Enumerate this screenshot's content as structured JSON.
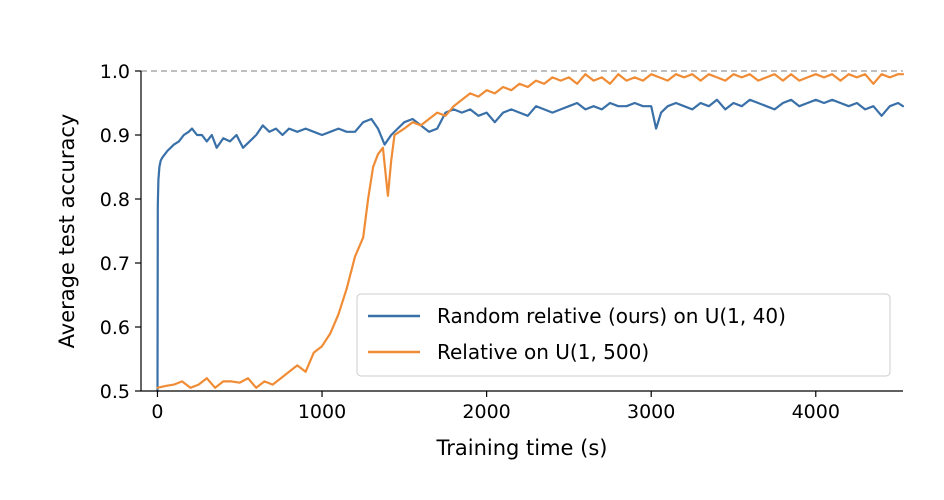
{
  "chart_data": {
    "type": "line",
    "xlabel": "Training time (s)",
    "ylabel": "Average test accuracy",
    "xlim": [
      -100,
      4530
    ],
    "ylim": [
      0.5,
      1.0
    ],
    "x_ticks": [
      0,
      1000,
      2000,
      3000,
      4000
    ],
    "x_tick_labels": [
      "0",
      "1000",
      "2000",
      "3000",
      "4000"
    ],
    "y_ticks": [
      0.5,
      0.6,
      0.7,
      0.8,
      0.9,
      1.0
    ],
    "y_tick_labels": [
      "0.5",
      "0.6",
      "0.7",
      "0.8",
      "0.9",
      "1.0"
    ],
    "reference_line": {
      "y": 1.0,
      "style": "dashed",
      "color": "#999999"
    },
    "legend_position": "lower-right",
    "series": [
      {
        "name": "Random relative (ours) on U(1, 40)",
        "color": "#3a70a8",
        "x": [
          0,
          2,
          6,
          12,
          20,
          30,
          45,
          60,
          80,
          100,
          130,
          160,
          190,
          210,
          240,
          270,
          300,
          330,
          360,
          400,
          440,
          480,
          520,
          560,
          600,
          640,
          680,
          720,
          760,
          800,
          850,
          900,
          950,
          1000,
          1050,
          1100,
          1150,
          1200,
          1250,
          1300,
          1340,
          1380,
          1420,
          1460,
          1500,
          1550,
          1600,
          1650,
          1700,
          1750,
          1800,
          1850,
          1900,
          1950,
          2000,
          2050,
          2100,
          2150,
          2200,
          2250,
          2300,
          2350,
          2400,
          2450,
          2500,
          2550,
          2600,
          2650,
          2700,
          2750,
          2800,
          2850,
          2900,
          2950,
          3000,
          3030,
          3060,
          3100,
          3150,
          3200,
          3250,
          3300,
          3350,
          3400,
          3450,
          3500,
          3550,
          3600,
          3650,
          3700,
          3750,
          3800,
          3850,
          3900,
          3950,
          4000,
          4050,
          4100,
          4150,
          4200,
          4250,
          4300,
          4350,
          4400,
          4450,
          4500,
          4530
        ],
        "y": [
          0.5,
          0.79,
          0.83,
          0.85,
          0.86,
          0.865,
          0.87,
          0.875,
          0.88,
          0.885,
          0.89,
          0.9,
          0.905,
          0.91,
          0.9,
          0.9,
          0.89,
          0.9,
          0.88,
          0.895,
          0.89,
          0.9,
          0.88,
          0.89,
          0.9,
          0.915,
          0.905,
          0.91,
          0.9,
          0.91,
          0.905,
          0.91,
          0.905,
          0.9,
          0.905,
          0.91,
          0.905,
          0.905,
          0.92,
          0.925,
          0.91,
          0.885,
          0.9,
          0.91,
          0.92,
          0.925,
          0.915,
          0.905,
          0.91,
          0.935,
          0.94,
          0.935,
          0.94,
          0.93,
          0.935,
          0.92,
          0.935,
          0.94,
          0.935,
          0.93,
          0.945,
          0.94,
          0.935,
          0.94,
          0.945,
          0.95,
          0.94,
          0.945,
          0.94,
          0.95,
          0.945,
          0.945,
          0.95,
          0.945,
          0.945,
          0.91,
          0.935,
          0.945,
          0.95,
          0.945,
          0.94,
          0.95,
          0.945,
          0.955,
          0.94,
          0.95,
          0.945,
          0.955,
          0.95,
          0.945,
          0.94,
          0.95,
          0.955,
          0.945,
          0.95,
          0.955,
          0.95,
          0.955,
          0.95,
          0.945,
          0.95,
          0.94,
          0.945,
          0.93,
          0.945,
          0.95,
          0.945
        ]
      },
      {
        "name": "Relative on U(1, 500)",
        "color": "#f08c35",
        "x": [
          0,
          50,
          100,
          150,
          200,
          250,
          300,
          350,
          400,
          450,
          500,
          550,
          600,
          650,
          700,
          750,
          800,
          850,
          900,
          950,
          1000,
          1050,
          1100,
          1150,
          1200,
          1250,
          1280,
          1310,
          1340,
          1370,
          1400,
          1420,
          1440,
          1470,
          1500,
          1550,
          1600,
          1650,
          1700,
          1750,
          1800,
          1850,
          1900,
          1950,
          2000,
          2050,
          2100,
          2150,
          2200,
          2250,
          2300,
          2350,
          2400,
          2450,
          2500,
          2550,
          2600,
          2650,
          2700,
          2750,
          2800,
          2850,
          2900,
          2950,
          3000,
          3050,
          3100,
          3150,
          3200,
          3250,
          3300,
          3350,
          3400,
          3450,
          3500,
          3550,
          3600,
          3650,
          3700,
          3750,
          3800,
          3850,
          3900,
          3950,
          4000,
          4050,
          4100,
          4150,
          4200,
          4250,
          4300,
          4350,
          4400,
          4450,
          4500,
          4530
        ],
        "y": [
          0.505,
          0.508,
          0.51,
          0.515,
          0.505,
          0.51,
          0.52,
          0.505,
          0.515,
          0.515,
          0.513,
          0.52,
          0.505,
          0.515,
          0.51,
          0.52,
          0.53,
          0.54,
          0.53,
          0.56,
          0.57,
          0.59,
          0.62,
          0.66,
          0.71,
          0.74,
          0.8,
          0.85,
          0.87,
          0.88,
          0.805,
          0.86,
          0.9,
          0.905,
          0.91,
          0.92,
          0.915,
          0.925,
          0.935,
          0.93,
          0.945,
          0.955,
          0.965,
          0.96,
          0.97,
          0.965,
          0.975,
          0.97,
          0.98,
          0.975,
          0.985,
          0.98,
          0.99,
          0.985,
          0.99,
          0.98,
          0.995,
          0.985,
          0.99,
          0.98,
          0.995,
          0.985,
          0.99,
          0.985,
          0.995,
          0.99,
          0.985,
          0.995,
          0.99,
          0.995,
          0.985,
          0.995,
          0.99,
          0.985,
          0.995,
          0.99,
          0.995,
          0.985,
          0.99,
          0.995,
          0.985,
          0.995,
          0.985,
          0.99,
          0.995,
          0.99,
          0.995,
          0.985,
          0.995,
          0.99,
          0.995,
          0.98,
          0.995,
          0.99,
          0.995,
          0.995
        ]
      }
    ]
  }
}
